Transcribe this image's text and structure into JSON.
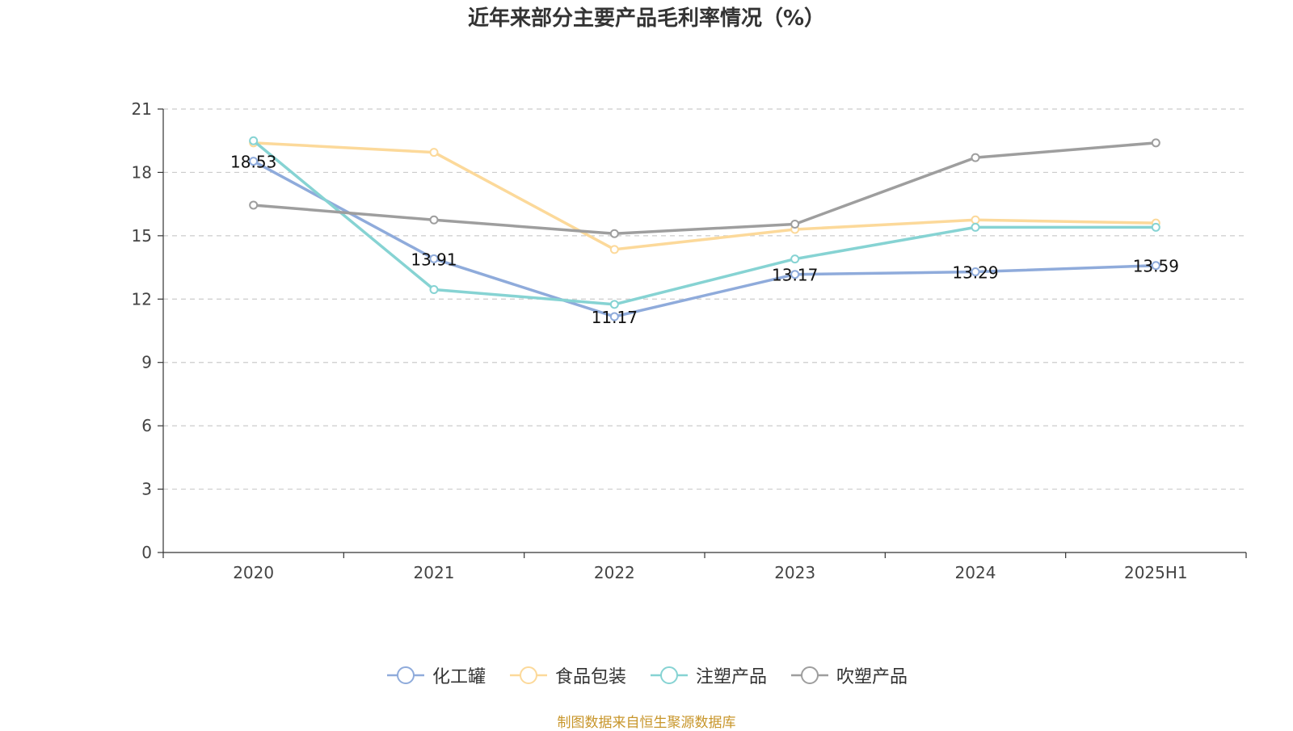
{
  "chart_data": {
    "type": "line",
    "title": "近年来部分主要产品毛利率情况（%）",
    "categories": [
      "2020",
      "2021",
      "2022",
      "2023",
      "2024",
      "2025H1"
    ],
    "ylim": [
      0,
      21
    ],
    "yticks": [
      0,
      3,
      6,
      9,
      12,
      15,
      18,
      21
    ],
    "grid": true,
    "legend_position": "bottom-center",
    "series": [
      {
        "name": "化工罐",
        "color": "#8fabdb",
        "values": [
          18.53,
          13.91,
          11.17,
          13.17,
          13.29,
          13.59
        ],
        "labels": [
          "18.53",
          "13.91",
          "11.17",
          "13.17",
          "13.29",
          "13.59"
        ]
      },
      {
        "name": "食品包装",
        "color": "#fcd99a",
        "values": [
          19.4,
          18.95,
          14.35,
          15.3,
          15.75,
          15.6
        ]
      },
      {
        "name": "注塑产品",
        "color": "#86d3d3",
        "values": [
          19.5,
          12.45,
          11.75,
          13.9,
          15.4,
          15.4
        ]
      },
      {
        "name": "吹塑产品",
        "color": "#9e9e9e",
        "values": [
          16.45,
          15.75,
          15.1,
          15.55,
          18.7,
          19.4
        ]
      }
    ]
  },
  "source": "制图数据来自恒生聚源数据库"
}
